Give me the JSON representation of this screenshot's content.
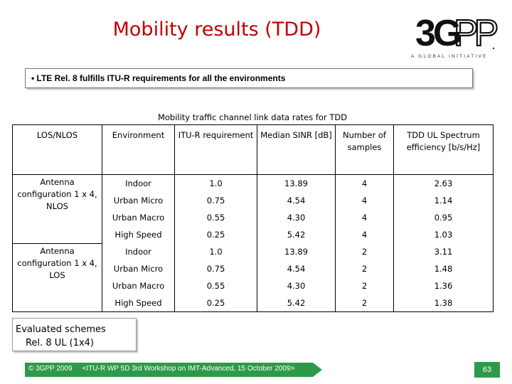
{
  "slide": {
    "title": "Mobility results (TDD)",
    "logo_text": "3GPP",
    "logo_tagline": "A GLOBAL INITIATIVE",
    "statement": "• LTE Rel. 8 fulfills ITU-R requirements for all the environments",
    "table_caption": "Mobility traffic channel link data rates for TDD",
    "columns": [
      "LOS/NLOS",
      "Environment",
      "ITU-R requirement",
      "Median SINR [dB]",
      "Number of samples",
      "TDD UL Spectrum efficiency [b/s/Hz]"
    ],
    "groups": [
      {
        "label": "Antenna configuration 1 x 4, NLOS",
        "rows": [
          [
            "Indoor",
            "1.0",
            "13.89",
            "4",
            "2.63"
          ],
          [
            "Urban Micro",
            "0.75",
            "4.54",
            "4",
            "1.14"
          ],
          [
            "Urban Macro",
            "0.55",
            "4.30",
            "4",
            "0.95"
          ],
          [
            "High Speed",
            "0.25",
            "5.42",
            "4",
            "1.03"
          ]
        ]
      },
      {
        "label": "Antenna configuration 1 x 4, LOS",
        "rows": [
          [
            "Indoor",
            "1.0",
            "13.89",
            "2",
            "3.11"
          ],
          [
            "Urban Micro",
            "0.75",
            "4.54",
            "2",
            "1.48"
          ],
          [
            "Urban Macro",
            "0.55",
            "4.30",
            "2",
            "1.36"
          ],
          [
            "High Speed",
            "0.25",
            "5.42",
            "2",
            "1.38"
          ]
        ]
      }
    ],
    "schemes_title": "Evaluated schemes",
    "schemes_value": "Rel. 8 UL (1x4)",
    "footer_copyright": "© 3GPP 2009",
    "footer_workshop": "<ITU-R WP 5D 3rd Workshop on IMT-Advanced, 15 October 2009>",
    "page_number": "63"
  },
  "colors": {
    "title": "#c00000",
    "footer_bar": "#2e9a49",
    "page_badge": "#2e9a49"
  }
}
